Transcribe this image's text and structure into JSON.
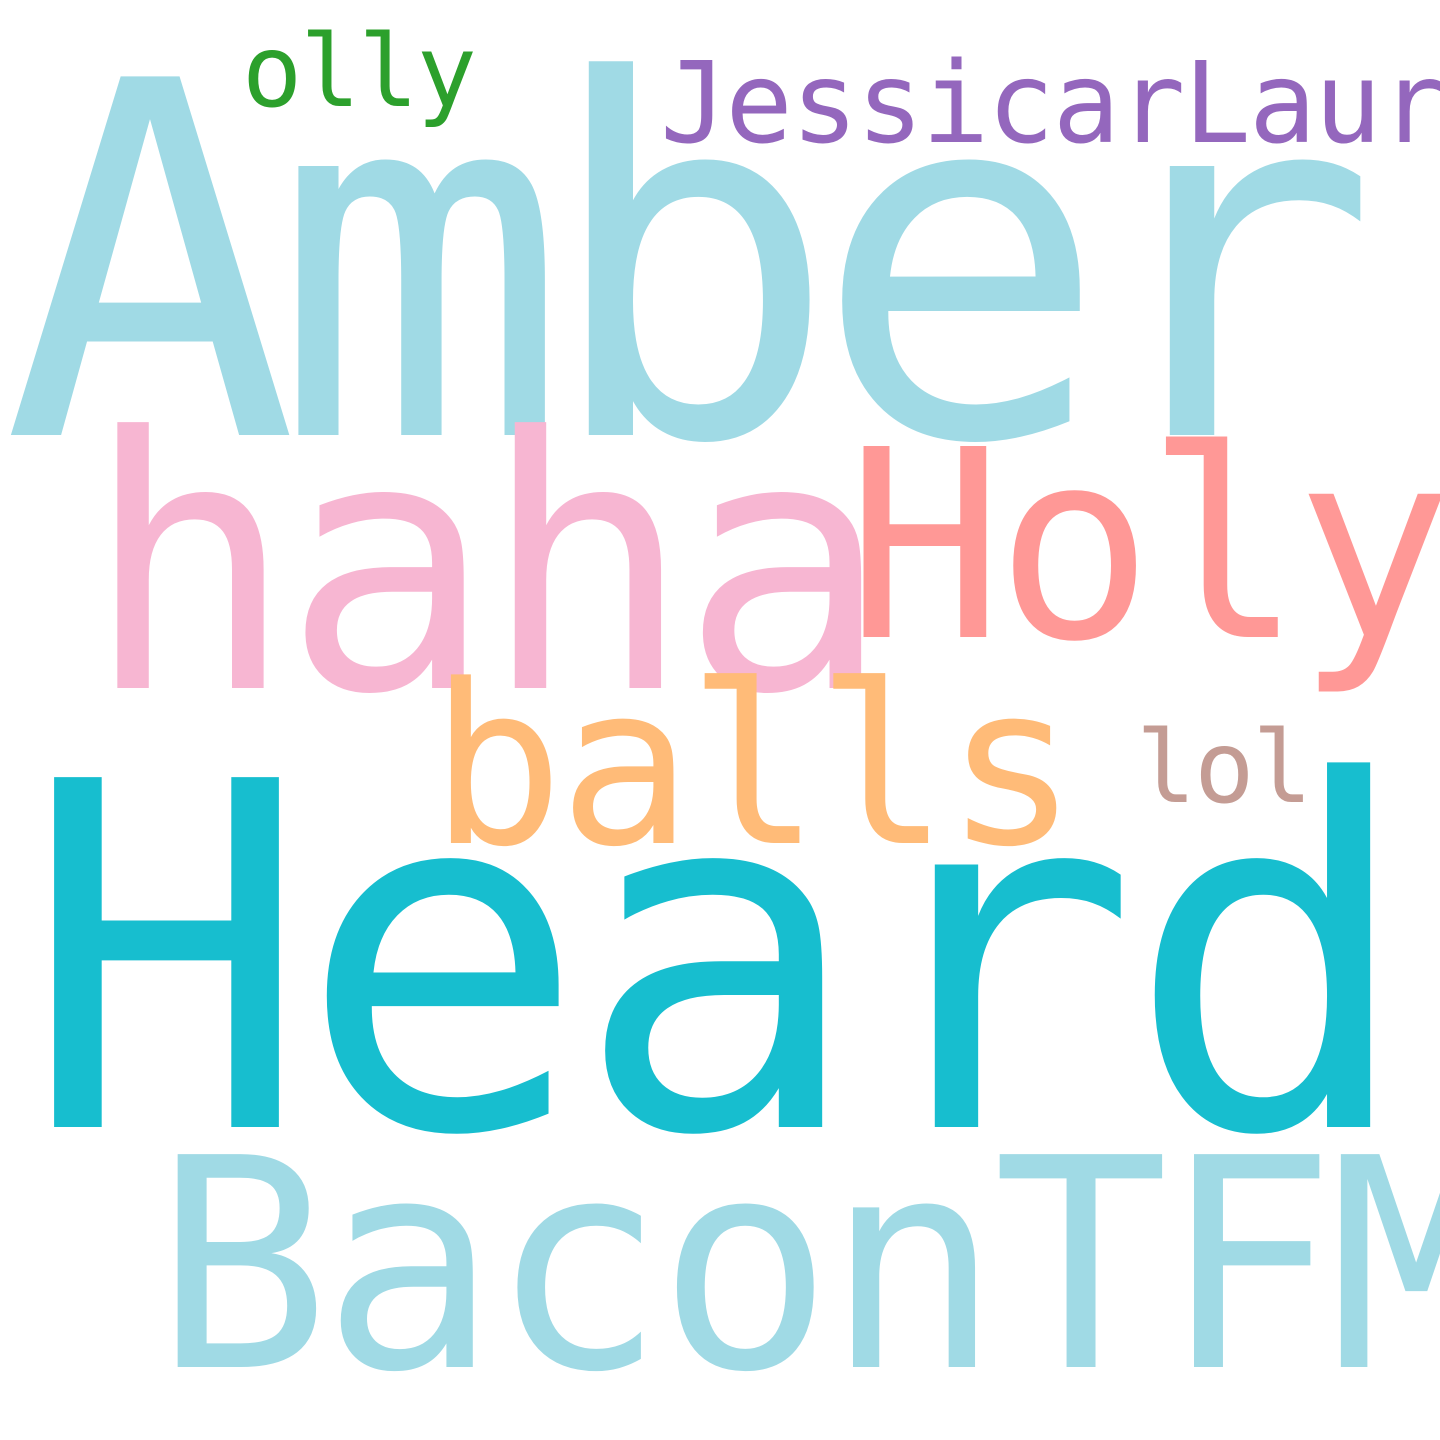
{
  "words": [
    {
      "text": "Amber",
      "color": "#a0dae5"
    },
    {
      "text": "Heard",
      "color": "#17becf"
    },
    {
      "text": "haha",
      "color": "#f7b6d2"
    },
    {
      "text": "Holy",
      "color": "#ff9896"
    },
    {
      "text": "BaconTFM",
      "color": "#a0dae5"
    },
    {
      "text": "balls",
      "color": "#ffbb78"
    },
    {
      "text": "JessicarLauren",
      "color": "#9467bd"
    },
    {
      "text": "olly",
      "color": "#2ca02c"
    },
    {
      "text": "lol",
      "color": "#c49c94"
    }
  ]
}
